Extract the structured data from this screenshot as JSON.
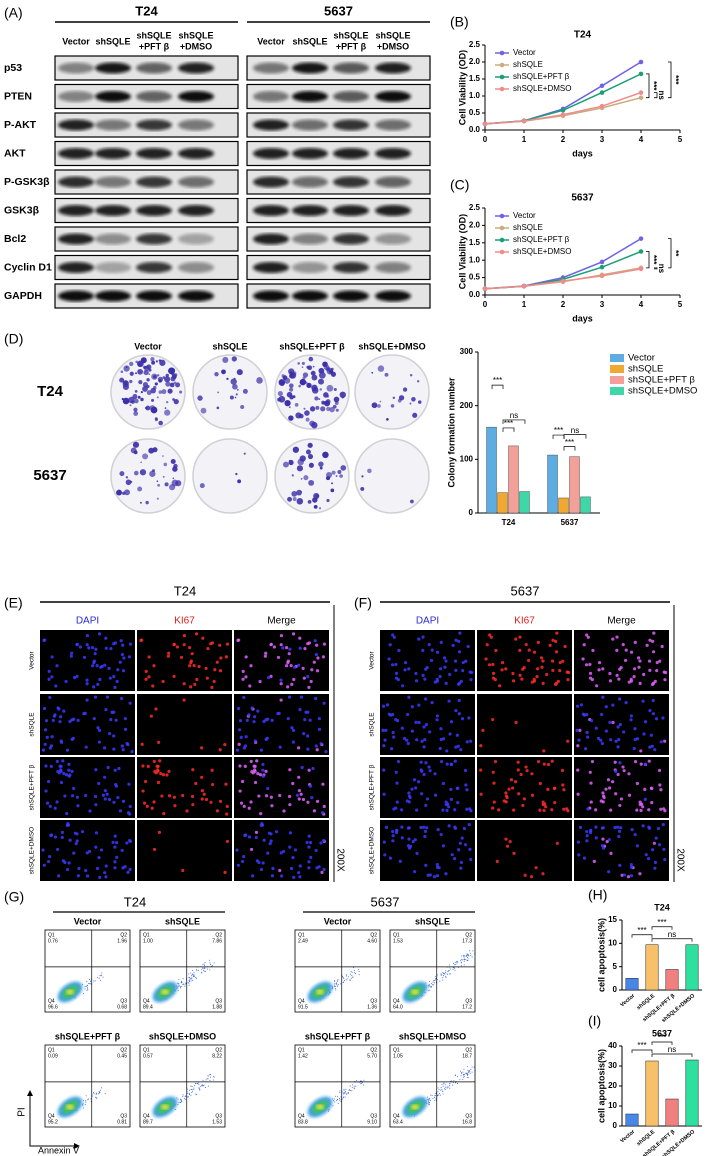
{
  "blot": {
    "label": "(A)",
    "groups": [
      "T24",
      "5637"
    ],
    "columns": [
      [
        "Vector"
      ],
      [
        "shSQLE"
      ],
      [
        "shSQLE",
        "+PFT β"
      ],
      [
        "shSQLE",
        "+DMSO"
      ]
    ],
    "rows": [
      "p53",
      "PTEN",
      "P-AKT",
      "AKT",
      "P-GSK3β",
      "GSK3β",
      "Bcl2",
      "Cyclin D1",
      "GAPDH"
    ]
  },
  "chart_data": [
    {
      "type": "line",
      "panel_label": "(B)",
      "title": "T24",
      "x_label": "days",
      "y_label": "Cell Viability (OD)",
      "x": [
        0,
        1,
        2,
        3,
        4
      ],
      "xlim": [
        0,
        5
      ],
      "xticks": [
        0,
        1,
        2,
        3,
        4,
        5
      ],
      "ylim": [
        0,
        2.5
      ],
      "yticks": [
        {
          "value": 0,
          "label": "0.0"
        },
        0.5,
        {
          "value": 1,
          "label": "1.0"
        },
        1.5,
        {
          "value": 2,
          "label": "2.0"
        },
        2.5
      ],
      "series": [
        {
          "name": "Vector",
          "color": "#6f63e3",
          "values": [
            0.18,
            0.27,
            0.62,
            1.3,
            2.0
          ]
        },
        {
          "name": "shSQLE",
          "color": "#c9ad7f",
          "values": [
            0.18,
            0.26,
            0.42,
            0.65,
            0.95
          ]
        },
        {
          "name": "shSQLE+PFT β",
          "color": "#1b9e77",
          "values": [
            0.18,
            0.27,
            0.58,
            1.1,
            1.65
          ]
        },
        {
          "name": "shSQLE+DMSO",
          "color": "#f28a8a",
          "values": [
            0.18,
            0.26,
            0.45,
            0.7,
            1.1
          ]
        }
      ],
      "annotations": [
        "***",
        "ns",
        "***"
      ],
      "legend": "upper left"
    },
    {
      "type": "line",
      "panel_label": "(C)",
      "title": "5637",
      "x_label": "days",
      "y_label": "Cell Viability (OD)",
      "x": [
        0,
        1,
        2,
        3,
        4
      ],
      "xlim": [
        0,
        5
      ],
      "xticks": [
        0,
        1,
        2,
        3,
        4,
        5
      ],
      "ylim": [
        0,
        2.5
      ],
      "yticks": [
        {
          "value": 0,
          "label": "0.0"
        },
        0.5,
        {
          "value": 1,
          "label": "1.0"
        },
        1.5,
        {
          "value": 2,
          "label": "2.0"
        },
        2.5
      ],
      "series": [
        {
          "name": "Vector",
          "color": "#6f63e3",
          "values": [
            0.18,
            0.26,
            0.5,
            0.95,
            1.62
          ]
        },
        {
          "name": "shSQLE",
          "color": "#c9ad7f",
          "values": [
            0.18,
            0.25,
            0.38,
            0.58,
            0.78
          ]
        },
        {
          "name": "shSQLE+PFT β",
          "color": "#1b9e77",
          "values": [
            0.18,
            0.25,
            0.45,
            0.8,
            1.25
          ]
        },
        {
          "name": "shSQLE+DMSO",
          "color": "#f28a8a",
          "values": [
            0.18,
            0.25,
            0.4,
            0.55,
            0.75
          ]
        }
      ],
      "annotations": [
        "***",
        "ns",
        "**"
      ],
      "legend": "upper left"
    },
    {
      "type": "bar",
      "y_label": "Colony formation number",
      "categories": [
        "T24",
        "5637"
      ],
      "ylim": [
        0,
        300
      ],
      "yticks": [
        0,
        100,
        200,
        300
      ],
      "series": [
        {
          "name": "Vector",
          "color": "#5dade2",
          "values": [
            160,
            108
          ]
        },
        {
          "name": "shSQLE",
          "color": "#f0a830",
          "values": [
            38,
            28
          ]
        },
        {
          "name": "shSQLE+PFT β",
          "color": "#f4a09a",
          "values": [
            125,
            105
          ]
        },
        {
          "name": "shSQLE+DMSO",
          "color": "#3fd6a8",
          "values": [
            40,
            30
          ]
        }
      ],
      "annotations": [
        "***",
        "***",
        "ns",
        "***",
        "***",
        "ns"
      ],
      "legend": "right"
    },
    {
      "type": "bar",
      "panel_label": "(H)",
      "title": "T24",
      "y_label": "cell apoptosis(%)",
      "categories": [
        "Vector",
        "shSQLE",
        "shSQLE+PFT β",
        "shSQLE+DMSO"
      ],
      "values": [
        2.5,
        9.7,
        4.4,
        9.7
      ],
      "colors": [
        "#4a86e8",
        "#f9c06a",
        "#f08080",
        "#2de0a0"
      ],
      "ylim": [
        0,
        15
      ],
      "yticks": [
        0,
        5,
        10,
        15
      ],
      "annotations": [
        "***",
        "***",
        "ns"
      ]
    },
    {
      "type": "bar",
      "panel_label": "(I)",
      "title": "5637",
      "y_label": "cell apoptosis(%)",
      "categories": [
        "Vector",
        "shSQLE",
        "shSQLE+PFT β",
        "shSQLE+DMSO"
      ],
      "values": [
        6,
        32.5,
        13.5,
        33
      ],
      "colors": [
        "#4a86e8",
        "#f9c06a",
        "#f08080",
        "#2de0a0"
      ],
      "ylim": [
        0,
        40
      ],
      "yticks": [
        0,
        10,
        20,
        30,
        40
      ],
      "annotations": [
        "***",
        "***",
        "ns"
      ]
    }
  ],
  "colony": {
    "label": "(D)",
    "columns": [
      "Vector",
      "shSQLE",
      "shSQLE+PFT β",
      "shSQLE+DMSO"
    ],
    "rows": [
      "T24",
      "5637"
    ]
  },
  "if": [
    {
      "label": "(E)",
      "title": "T24",
      "channels": [
        "DAPI",
        "KI67",
        "Merge"
      ],
      "rows": [
        "Vector",
        "shSQLE",
        "shSQLE+PFT β",
        "shSQLE+DMSO"
      ],
      "magnification": "200X"
    },
    {
      "label": "(F)",
      "title": "5637",
      "channels": [
        "DAPI",
        "KI67",
        "Merge"
      ],
      "rows": [
        "Vector",
        "shSQLE",
        "shSQLE+PFT β",
        "shSQLE+DMSO"
      ],
      "magnification": "200X"
    }
  ],
  "flow": {
    "label": "(G)",
    "y_axis": "PI",
    "x_axis": "Annexin V",
    "quadrants": [
      "Q1",
      "Q2",
      "Q4",
      "Q3"
    ],
    "groups": [
      {
        "title": "T24",
        "plots": [
          {
            "name": "Vector",
            "values": [
              "0.76",
              "1.96",
              "96.6",
              "0.68"
            ]
          },
          {
            "name": "shSQLE",
            "values": [
              "1.00",
              "7.86",
              "89.4",
              "1.88"
            ]
          },
          {
            "name": "shSQLE+PFT β",
            "values": [
              "0.09",
              "0.45",
              "95.2",
              "0.81"
            ]
          },
          {
            "name": "shSQLE+DMSO",
            "values": [
              "0.57",
              "8.22",
              "89.7",
              "1.53"
            ]
          }
        ]
      },
      {
        "title": "5637",
        "plots": [
          {
            "name": "Vector",
            "values": [
              "2.49",
              "4.60",
              "91.5",
              "1.36"
            ]
          },
          {
            "name": "shSQLE",
            "values": [
              "1.53",
              "17.3",
              "64.0",
              "17.2"
            ]
          },
          {
            "name": "shSQLE+PFT β",
            "values": [
              "1.42",
              "5.70",
              "83.8",
              "9.10"
            ]
          },
          {
            "name": "shSQLE+DMSO",
            "values": [
              "1.05",
              "18.7",
              "63.4",
              "16.8"
            ]
          }
        ]
      }
    ]
  }
}
